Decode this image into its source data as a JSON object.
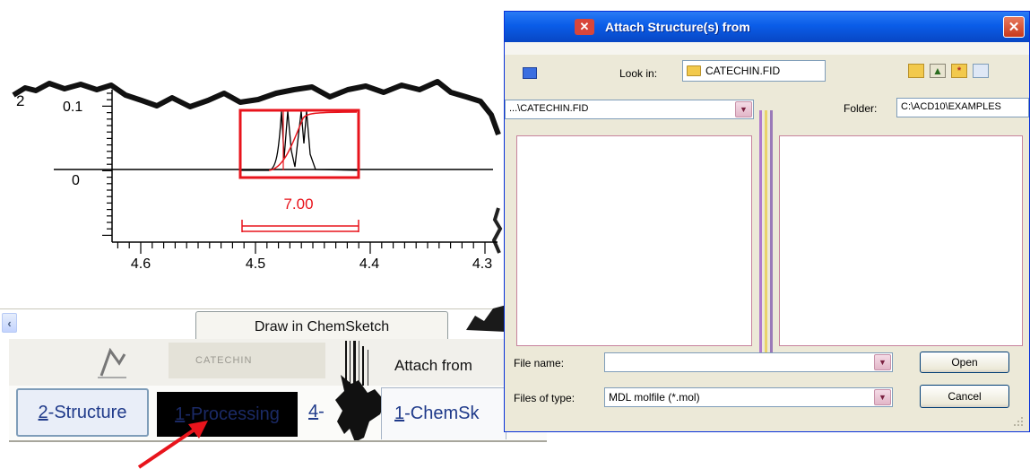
{
  "spectrum": {
    "y_axis_top_label": "2",
    "y_ticks": {
      "top": "0.1",
      "zero": "0"
    },
    "x_ticks": [
      "4.6",
      "4.5",
      "4.4",
      "4.3"
    ],
    "integral_value": "7.00"
  },
  "upper_tabs": {
    "draw_in_chemsketch": "Draw in ChemSketch"
  },
  "middle_row": {
    "structure_name": "CATECHIN",
    "attach_from": "Attach from"
  },
  "bottom_tabs": {
    "structure": {
      "mnemonic": "2",
      "rest": "-Structure"
    },
    "processing": {
      "mnemonic": "1",
      "rest": "-Processing"
    },
    "fourth": {
      "mnemonic": "4",
      "rest": "-"
    },
    "chemsketch": {
      "mnemonic": "1",
      "rest": "-ChemSk"
    }
  },
  "dialog": {
    "title": "Attach Structure(s) from",
    "close_glyph": "✕",
    "look_in_label": "Look in:",
    "look_in_value": "CATECHIN.FID",
    "path_value": "...\\CATECHIN.FID",
    "folder_label": "Folder:",
    "folder_value": "C:\\ACD10\\EXAMPLES",
    "file_name_label": "File name:",
    "file_name_value": "",
    "open_label": "Open",
    "files_of_type_label": "Files of type:",
    "files_of_type_value": "MDL molfile (*.mol)",
    "cancel_label": "Cancel"
  },
  "icons": [
    "scroll-left-icon",
    "dialog-app-icon",
    "close-icon",
    "folder-icon",
    "up-folder-icon",
    "new-folder-icon",
    "view-menu-icon",
    "chevron-down-icon",
    "resize-grip-icon",
    "red-arrow"
  ],
  "colors": {
    "integral_red": "#E8141C",
    "title_blue": "#0A5DE8",
    "dialog_bg": "#ECE9D8",
    "tab_text_blue": "#1F3A8A"
  }
}
